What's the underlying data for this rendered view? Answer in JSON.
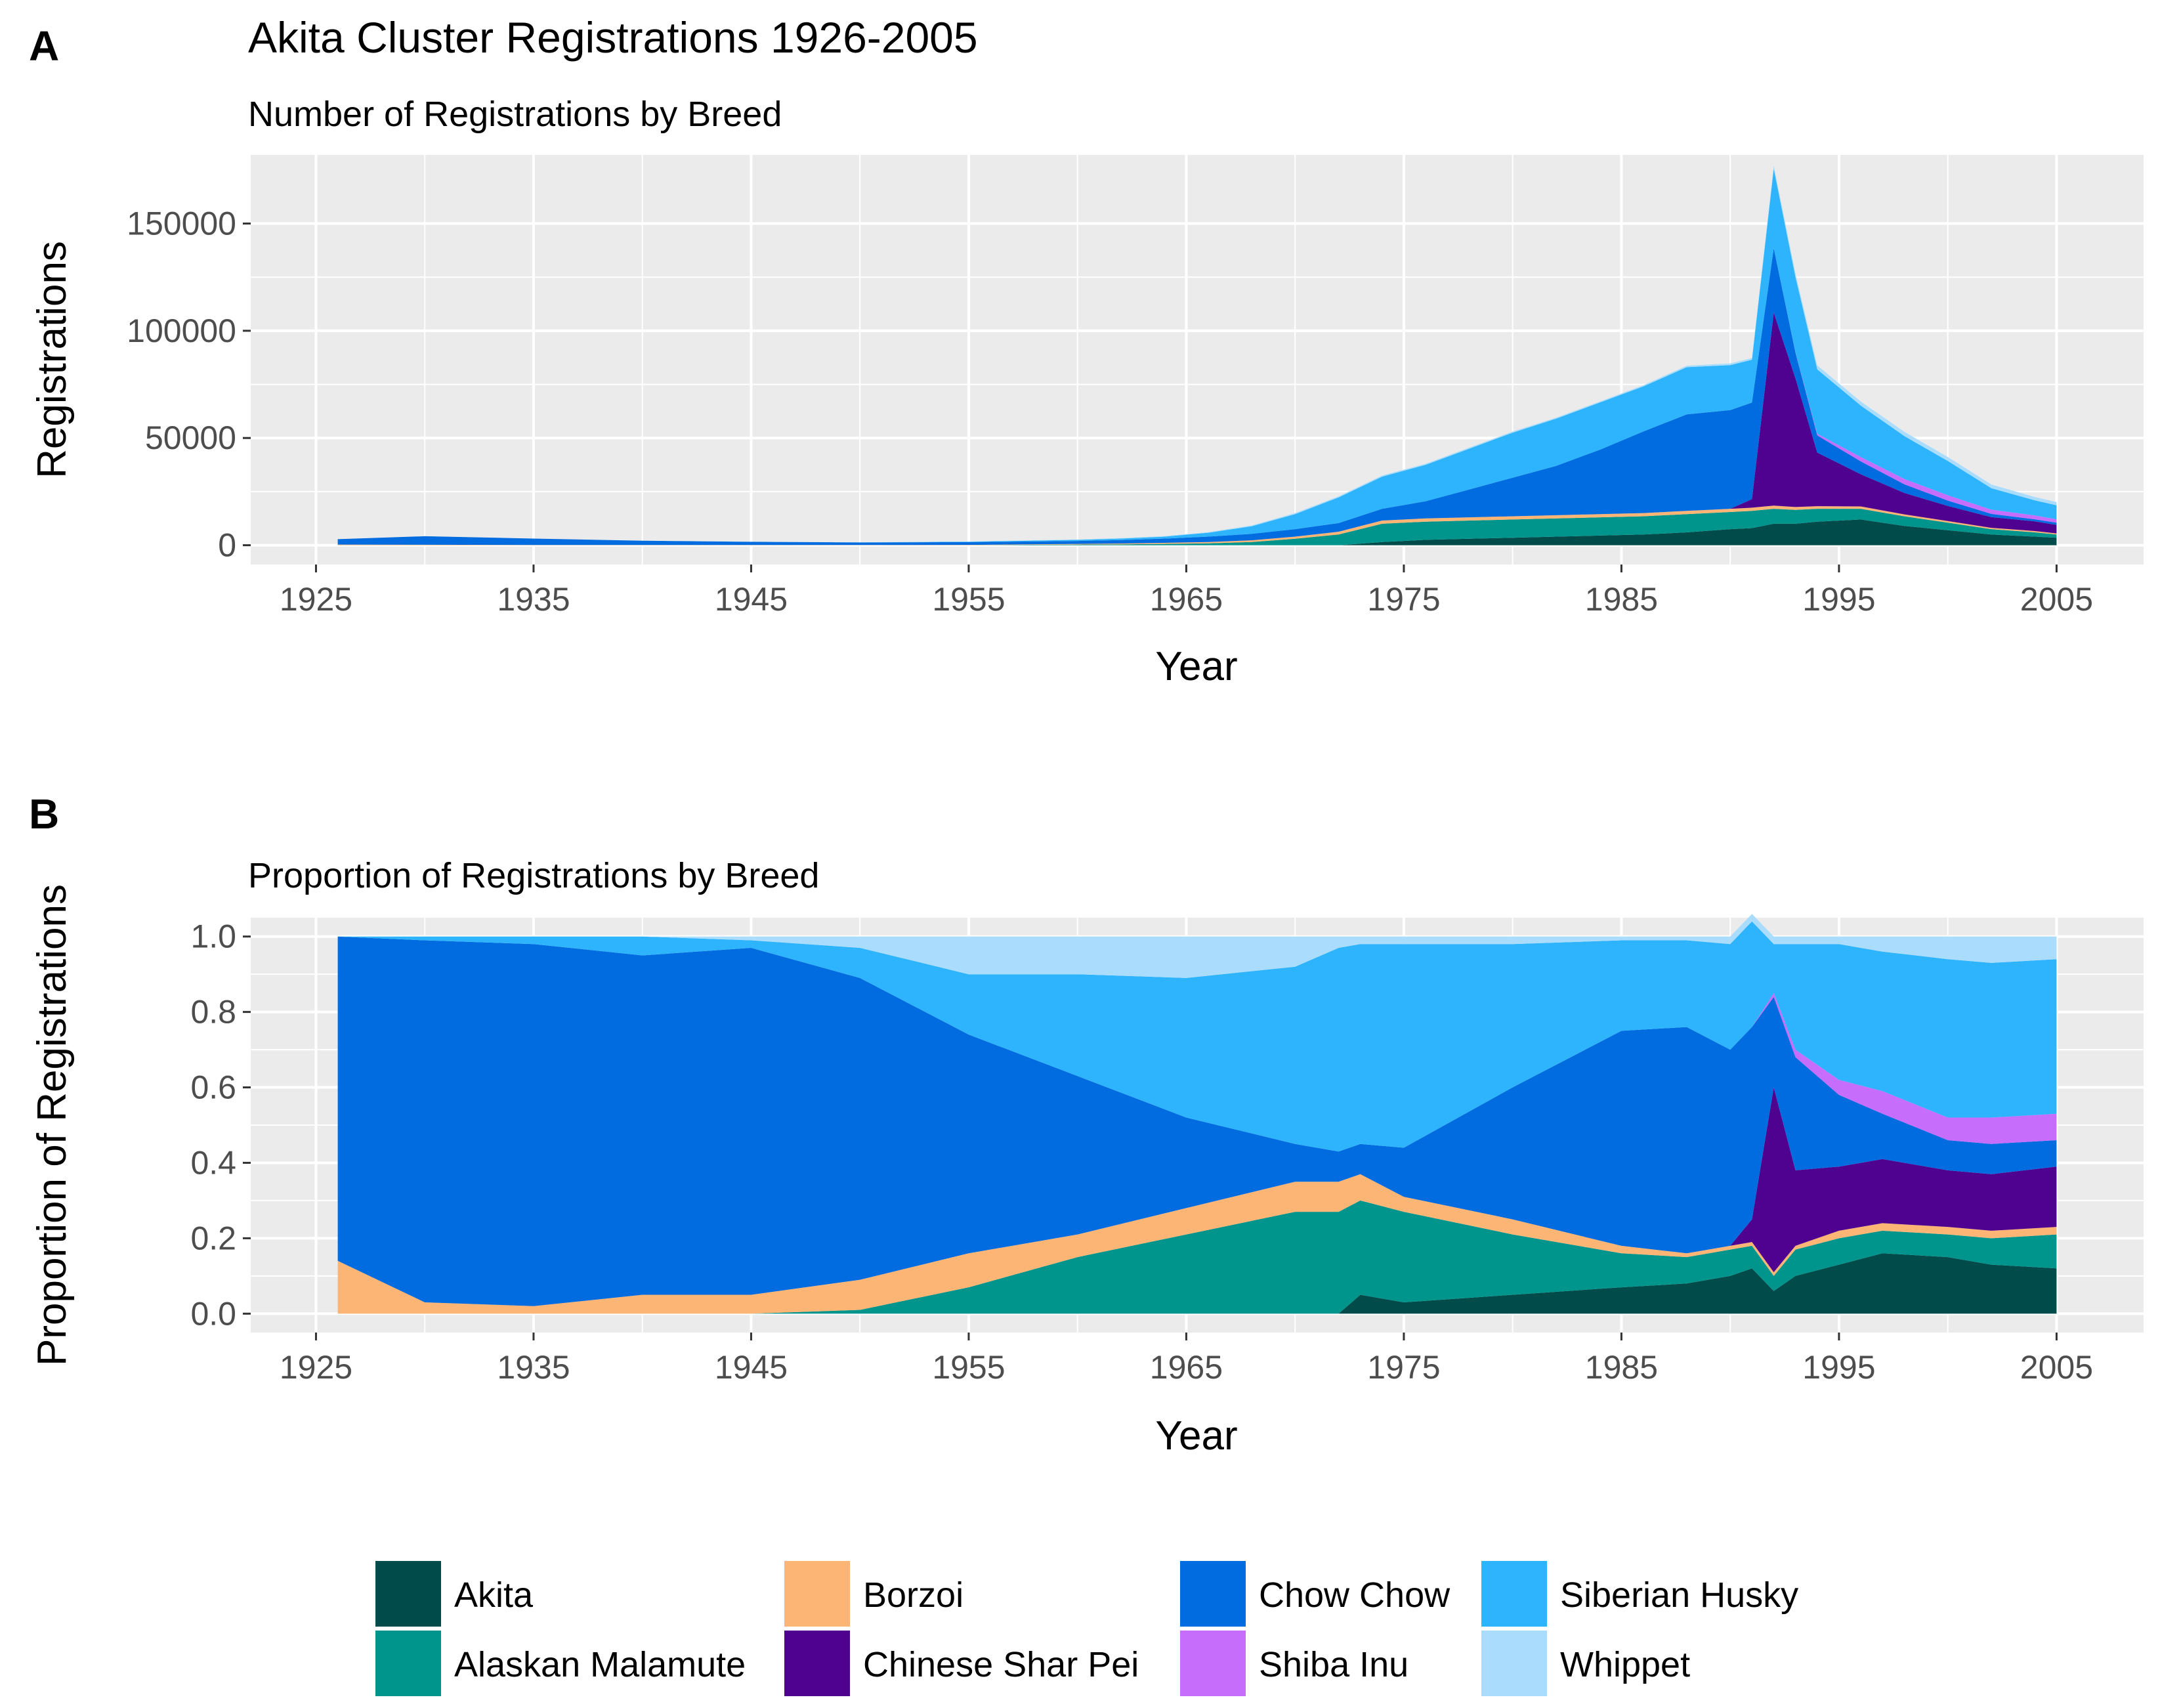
{
  "panels": {
    "a": {
      "letter": "A",
      "title": "Akita Cluster Registrations 1926-2005",
      "subtitle": "Number of Registrations by Breed",
      "ylabel": "Registrations",
      "xlabel": "Year",
      "yticks": [
        "0",
        "50000",
        "100000",
        "150000"
      ],
      "xticks": [
        "1925",
        "1935",
        "1945",
        "1955",
        "1965",
        "1975",
        "1985",
        "1995",
        "2005"
      ]
    },
    "b": {
      "letter": "B",
      "subtitle": "Proportion of Registrations by Breed",
      "ylabel": "Proportion of Registrations",
      "xlabel": "Year",
      "yticks": [
        "0.0",
        "0.2",
        "0.4",
        "0.6",
        "0.8",
        "1.0"
      ],
      "xticks": [
        "1925",
        "1935",
        "1945",
        "1955",
        "1965",
        "1975",
        "1985",
        "1995",
        "2005"
      ]
    }
  },
  "legend": [
    {
      "label": "Akita",
      "color": "#014c4a"
    },
    {
      "label": "Alaskan Malamute",
      "color": "#00958c"
    },
    {
      "label": "Borzoi",
      "color": "#fcb575"
    },
    {
      "label": "Chinese Shar Pei",
      "color": "#4f018f"
    },
    {
      "label": "Chow Chow",
      "color": "#006cdf"
    },
    {
      "label": "Shiba Inu",
      "color": "#c66dfb"
    },
    {
      "label": "Siberian Husky",
      "color": "#2db4fc"
    },
    {
      "label": "Whippet",
      "color": "#a9dcfd"
    }
  ],
  "chart_data": [
    {
      "type": "area",
      "stacked": true,
      "xlabel": "Year",
      "ylabel": "Registrations",
      "xlim": [
        1922,
        2009
      ],
      "ylim": [
        -9000,
        182000
      ],
      "grid": true,
      "x": [
        1926,
        1930,
        1935,
        1940,
        1945,
        1950,
        1955,
        1960,
        1962,
        1964,
        1966,
        1968,
        1970,
        1972,
        1974,
        1976,
        1978,
        1980,
        1982,
        1984,
        1986,
        1988,
        1990,
        1991,
        1992,
        1993,
        1994,
        1996,
        1998,
        2000,
        2002,
        2004,
        2005
      ],
      "series": [
        {
          "name": "Akita",
          "values": [
            0,
            0,
            0,
            0,
            0,
            0,
            0,
            0,
            0,
            0,
            0,
            0,
            0,
            0,
            1500,
            2500,
            3000,
            3500,
            4000,
            4500,
            5000,
            6000,
            7500,
            8000,
            10000,
            10000,
            11000,
            12000,
            9000,
            7000,
            5000,
            4000,
            3500
          ]
        },
        {
          "name": "Alaskan Malamute",
          "values": [
            0,
            0,
            0,
            0,
            0,
            0,
            0,
            300,
            400,
            600,
            900,
            1500,
            3000,
            5000,
            8500,
            8500,
            8500,
            8500,
            8500,
            8500,
            8500,
            8500,
            8000,
            8000,
            7000,
            6500,
            6000,
            5000,
            4500,
            3500,
            2500,
            2000,
            1500
          ]
        },
        {
          "name": "Borzoi",
          "values": [
            300,
            200,
            100,
            100,
            80,
            80,
            150,
            300,
            400,
            500,
            600,
            800,
            1000,
            1300,
            1500,
            1500,
            1500,
            1500,
            1500,
            1500,
            1500,
            1500,
            1500,
            1500,
            1500,
            1300,
            1200,
            1100,
            900,
            800,
            600,
            600,
            500
          ]
        },
        {
          "name": "Chinese Shar Pei",
          "values": [
            0,
            0,
            0,
            0,
            0,
            0,
            0,
            0,
            0,
            0,
            0,
            0,
            0,
            0,
            0,
            0,
            0,
            0,
            0,
            0,
            0,
            0,
            0,
            4000,
            90000,
            60000,
            25000,
            15000,
            10000,
            7000,
            5000,
            4500,
            4000
          ]
        },
        {
          "name": "Chow Chow",
          "values": [
            2500,
            4000,
            3000,
            2000,
            1500,
            1200,
            1300,
            1400,
            1600,
            2000,
            2500,
            3000,
            3500,
            4000,
            5500,
            8000,
            13000,
            18000,
            23000,
            30000,
            38000,
            45000,
            46000,
            45000,
            30000,
            12000,
            8000,
            6000,
            4000,
            2500,
            1500,
            1000,
            1000
          ]
        },
        {
          "name": "Shiba Inu",
          "values": [
            0,
            0,
            0,
            0,
            0,
            0,
            0,
            0,
            0,
            0,
            0,
            0,
            0,
            0,
            0,
            0,
            0,
            0,
            0,
            0,
            0,
            0,
            0,
            0,
            0,
            200,
            800,
            2000,
            2500,
            2500,
            2000,
            1800,
            1600
          ]
        },
        {
          "name": "Siberian Husky",
          "values": [
            0,
            0,
            0,
            0,
            0,
            0,
            200,
            500,
            700,
            900,
            1800,
            3500,
            7000,
            12000,
            15000,
            17000,
            19000,
            21000,
            22000,
            22000,
            21000,
            22000,
            21000,
            20000,
            37000,
            35000,
            30000,
            24000,
            20000,
            16000,
            10000,
            7000,
            6500
          ]
        },
        {
          "name": "Whippet",
          "values": [
            0,
            0,
            0,
            0,
            50,
            50,
            100,
            150,
            200,
            250,
            300,
            400,
            500,
            500,
            500,
            500,
            500,
            500,
            500,
            500,
            600,
            700,
            800,
            800,
            1500,
            1700,
            1800,
            1900,
            2000,
            1800,
            1700,
            1600,
            1500
          ]
        }
      ]
    },
    {
      "type": "area",
      "stacked": true,
      "xlabel": "Year",
      "ylabel": "Proportion of Registrations",
      "xlim": [
        1922,
        2009
      ],
      "ylim": [
        -0.05,
        1.05
      ],
      "grid": true,
      "x": [
        1926,
        1930,
        1935,
        1940,
        1945,
        1950,
        1955,
        1960,
        1965,
        1970,
        1972,
        1973,
        1975,
        1980,
        1985,
        1988,
        1990,
        1991,
        1992,
        1993,
        1995,
        1997,
        2000,
        2002,
        2005
      ],
      "series": [
        {
          "name": "Akita",
          "values": [
            0,
            0,
            0,
            0,
            0,
            0,
            0,
            0,
            0,
            0,
            0,
            0.05,
            0.03,
            0.05,
            0.07,
            0.08,
            0.1,
            0.12,
            0.06,
            0.1,
            0.13,
            0.16,
            0.15,
            0.13,
            0.12
          ]
        },
        {
          "name": "Alaskan Malamute",
          "values": [
            0,
            0,
            0,
            0,
            0,
            0.01,
            0.07,
            0.15,
            0.21,
            0.27,
            0.27,
            0.25,
            0.24,
            0.16,
            0.09,
            0.07,
            0.07,
            0.06,
            0.04,
            0.07,
            0.07,
            0.06,
            0.06,
            0.07,
            0.09
          ]
        },
        {
          "name": "Borzoi",
          "values": [
            0.14,
            0.03,
            0.02,
            0.05,
            0.05,
            0.08,
            0.09,
            0.06,
            0.07,
            0.08,
            0.08,
            0.07,
            0.04,
            0.04,
            0.02,
            0.01,
            0.01,
            0.01,
            0.01,
            0.01,
            0.02,
            0.02,
            0.02,
            0.02,
            0.02
          ]
        },
        {
          "name": "Chinese Shar Pei",
          "values": [
            0,
            0,
            0,
            0,
            0,
            0,
            0,
            0,
            0,
            0,
            0,
            0,
            0,
            0,
            0,
            0,
            0,
            0.06,
            0.49,
            0.2,
            0.17,
            0.17,
            0.15,
            0.15,
            0.16
          ]
        },
        {
          "name": "Chow Chow",
          "values": [
            0.86,
            0.96,
            0.96,
            0.9,
            0.92,
            0.8,
            0.58,
            0.42,
            0.24,
            0.1,
            0.08,
            0.08,
            0.13,
            0.35,
            0.57,
            0.6,
            0.52,
            0.51,
            0.24,
            0.3,
            0.19,
            0.12,
            0.08,
            0.08,
            0.07
          ]
        },
        {
          "name": "Shiba Inu",
          "values": [
            0,
            0,
            0,
            0,
            0,
            0,
            0,
            0,
            0,
            0,
            0,
            0,
            0,
            0,
            0,
            0,
            0,
            0,
            0.01,
            0.02,
            0.04,
            0.06,
            0.06,
            0.07,
            0.07
          ]
        },
        {
          "name": "Siberian Husky",
          "values": [
            0,
            0.01,
            0.02,
            0.05,
            0.02,
            0.08,
            0.16,
            0.27,
            0.37,
            0.47,
            0.54,
            0.53,
            0.54,
            0.38,
            0.24,
            0.23,
            0.28,
            0.28,
            0.13,
            0.28,
            0.36,
            0.37,
            0.42,
            0.41,
            0.41
          ]
        },
        {
          "name": "Whippet",
          "values": [
            0,
            0,
            0,
            0,
            0.01,
            0.03,
            0.1,
            0.1,
            0.11,
            0.08,
            0.03,
            0.02,
            0.02,
            0.02,
            0.01,
            0.01,
            0.02,
            0.02,
            0.02,
            0.02,
            0.02,
            0.04,
            0.06,
            0.07,
            0.06
          ]
        }
      ]
    }
  ]
}
